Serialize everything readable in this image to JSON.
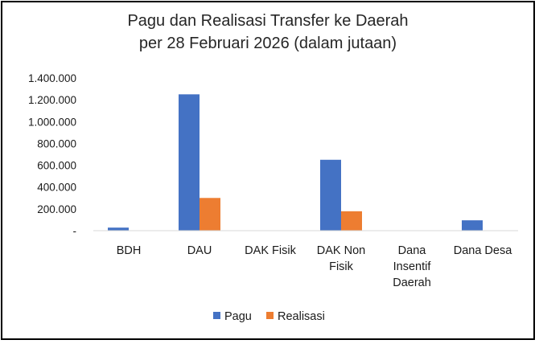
{
  "chart_data": {
    "type": "bar",
    "title": "Pagu dan Realisasi Transfer ke Daerah",
    "subtitle": "per 28 Februari 2026 (dalam jutaan)",
    "xlabel": "",
    "ylabel": "",
    "categories": [
      [
        "BDH"
      ],
      [
        "DAU"
      ],
      [
        "DAK Fisik"
      ],
      [
        "DAK Non",
        "Fisik"
      ],
      [
        "Dana",
        "Insentif",
        "Daerah"
      ],
      [
        "Dana Desa"
      ]
    ],
    "series": [
      {
        "name": "Pagu",
        "color": "#4472C4",
        "values": [
          28000,
          1250000,
          0,
          650000,
          0,
          95000
        ]
      },
      {
        "name": "Realisasi",
        "color": "#ED7D31",
        "values": [
          3000,
          300000,
          0,
          178000,
          0,
          0
        ]
      }
    ],
    "ylim": [
      0,
      1400000
    ],
    "yticks": [
      {
        "value": 0,
        "label": "-"
      },
      {
        "value": 200000,
        "label": "200.000"
      },
      {
        "value": 400000,
        "label": "400.000"
      },
      {
        "value": 600000,
        "label": "600.000"
      },
      {
        "value": 800000,
        "label": "800.000"
      },
      {
        "value": 1000000,
        "label": "1.000.000"
      },
      {
        "value": 1200000,
        "label": "1.200.000"
      },
      {
        "value": 1400000,
        "label": "1.400.000"
      }
    ],
    "grid": false,
    "legend": "bottom"
  }
}
